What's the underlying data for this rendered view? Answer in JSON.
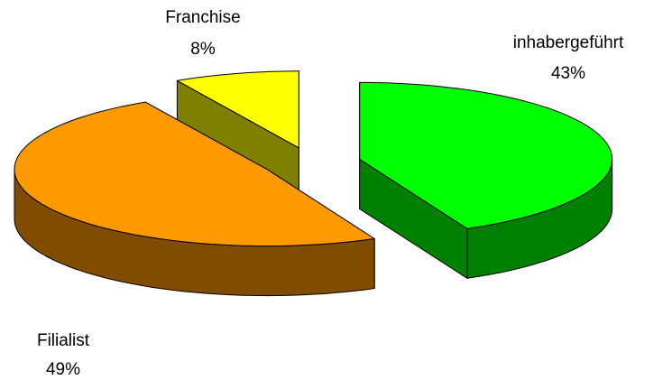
{
  "chart_data": {
    "type": "pie",
    "categories": [
      "inhabergeführt",
      "Filialist",
      "Franchise"
    ],
    "values": [
      43,
      49,
      8
    ],
    "value_labels": [
      "43%",
      "49%",
      "8%"
    ],
    "colors": [
      "#00ff00",
      "#ff9900",
      "#ffff00"
    ]
  }
}
